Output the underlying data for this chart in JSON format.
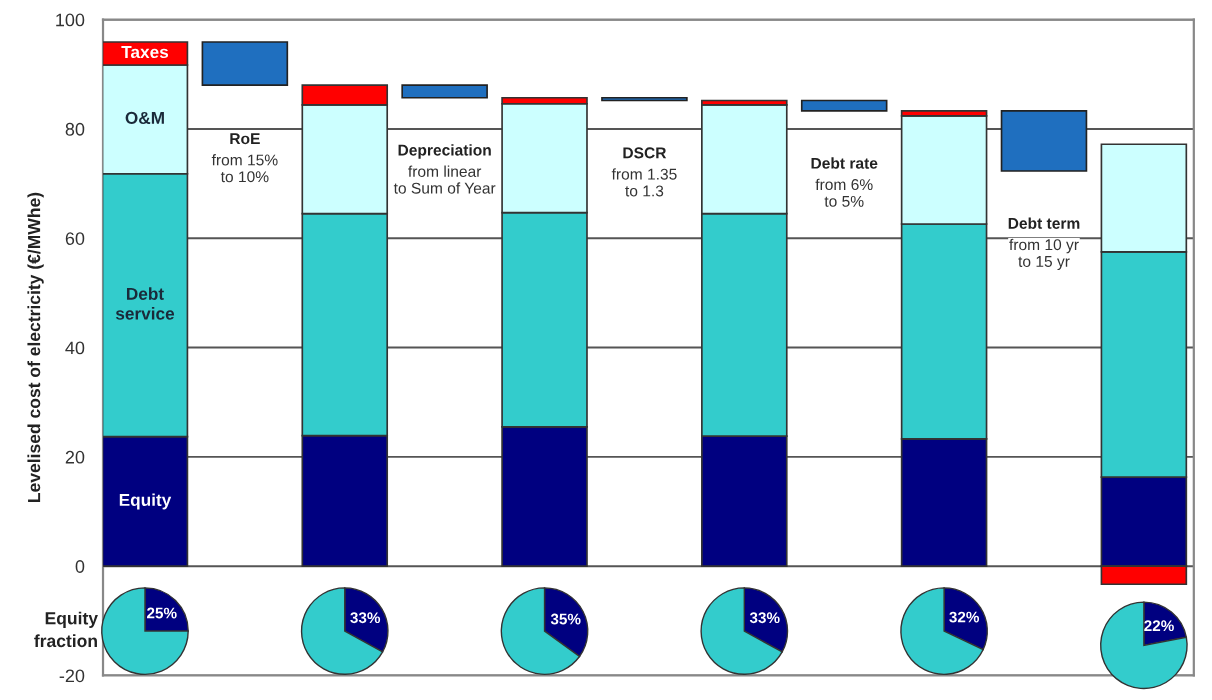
{
  "chart_data": [
    {
      "type": "bar",
      "stacked": true,
      "ylabel": "Levelised cost of electricity (€/MWhe)",
      "categories": [
        null,
        null,
        null,
        null,
        null,
        null,
        null,
        null,
        null,
        null,
        null
      ],
      "series": [
        {
          "name": "Equity",
          "color": "#000080",
          "values": [
            23.7,
            null,
            23.9,
            null,
            25.5,
            null,
            23.8,
            null,
            23.3,
            null,
            16.3
          ]
        },
        {
          "name": "Debt service",
          "color": "#33cccc",
          "values": [
            48.1,
            null,
            40.6,
            null,
            39.2,
            null,
            40.7,
            null,
            39.3,
            null,
            41.2
          ]
        },
        {
          "name": "O&M",
          "color": "#ccffff",
          "values": [
            19.9,
            null,
            19.9,
            null,
            19.9,
            null,
            19.9,
            null,
            19.8,
            null,
            19.7
          ]
        },
        {
          "name": "Taxes",
          "color": "#ff0000",
          "values": [
            4.2,
            null,
            3.6,
            null,
            1.1,
            null,
            0.8,
            null,
            0.9,
            null,
            -3.3
          ]
        },
        {
          "color": "#1f6fbf",
          "base": [
            null,
            88.0,
            null,
            85.7,
            null,
            85.2,
            null,
            83.3,
            null,
            72.3,
            null
          ],
          "values": [
            null,
            7.9,
            null,
            2.3,
            null,
            0.5,
            null,
            1.9,
            null,
            11.0,
            null
          ]
        }
      ],
      "ylim": [
        -20,
        100
      ],
      "yticks": [
        -20,
        0,
        20,
        40,
        60,
        80,
        100
      ],
      "grid": "y",
      "legend": false,
      "tick_labels": "y",
      "annotations": [
        "RoE\nfrom 15%\nto 10%",
        "Depreciation\nfrom linear\nto Sum of Year",
        "DSCR\nfrom 1.35\nto 1.3",
        "Debt rate\nfrom 6%\nto 5%",
        "Debt term\nfrom 10 yr\nto 15 yr"
      ]
    },
    {
      "type": "pie",
      "title": "Equity fraction",
      "categories": [
        null,
        null
      ],
      "values": [
        25,
        75
      ],
      "colors": [
        "#000080",
        "#33cccc"
      ],
      "value_labels": [
        "25%",
        null
      ]
    },
    {
      "type": "pie",
      "categories": [
        null,
        null
      ],
      "values": [
        33,
        67
      ],
      "colors": [
        "#000080",
        "#33cccc"
      ],
      "value_labels": [
        "33%",
        null
      ]
    },
    {
      "type": "pie",
      "categories": [
        null,
        null
      ],
      "values": [
        35,
        65
      ],
      "colors": [
        "#000080",
        "#33cccc"
      ],
      "value_labels": [
        "35%",
        null
      ]
    },
    {
      "type": "pie",
      "categories": [
        null,
        null
      ],
      "values": [
        33,
        67
      ],
      "colors": [
        "#000080",
        "#33cccc"
      ],
      "value_labels": [
        "33%",
        null
      ]
    },
    {
      "type": "pie",
      "categories": [
        null,
        null
      ],
      "values": [
        32,
        68
      ],
      "colors": [
        "#000080",
        "#33cccc"
      ],
      "value_labels": [
        "32%",
        null
      ]
    },
    {
      "type": "pie",
      "categories": [
        null,
        null
      ],
      "values": [
        22,
        78
      ],
      "colors": [
        "#000080",
        "#33cccc"
      ],
      "value_labels": [
        "22%",
        null
      ]
    }
  ]
}
